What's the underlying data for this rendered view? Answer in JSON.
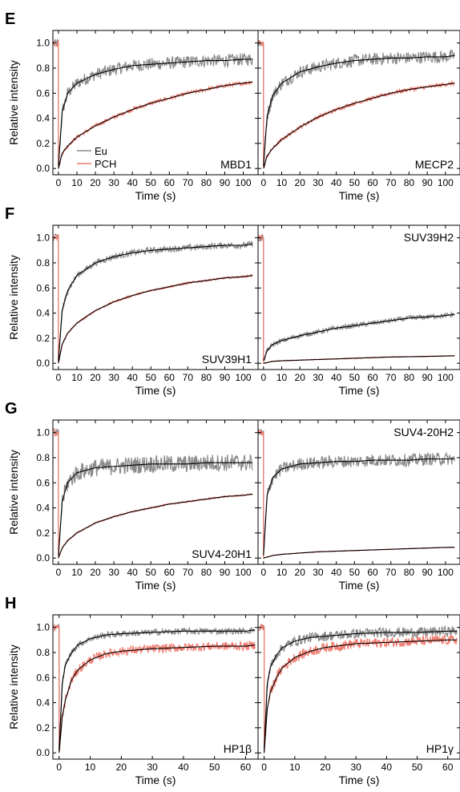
{
  "common": {
    "ylabel": "Relative intensity",
    "xlabel": "Time (s)",
    "series_names": [
      "Eu",
      "PCH"
    ],
    "colors": {
      "eu": "#8a8a8a",
      "pch": "#f07a6e",
      "fit": "#000000"
    }
  },
  "chart_data": [
    {
      "type": "line",
      "row": "E",
      "col": 0,
      "letter": "E",
      "label": "MBD1",
      "legend": true,
      "xlim": [
        -3,
        108
      ],
      "xticks": [
        0,
        10,
        20,
        30,
        40,
        50,
        60,
        70,
        80,
        90,
        100
      ],
      "ylim": [
        -0.05,
        1.1
      ],
      "yticks": [
        0.0,
        0.2,
        0.4,
        0.6,
        0.8,
        1.0
      ],
      "series": [
        {
          "name": "Eu",
          "x": [
            0,
            2,
            5,
            10,
            20,
            30,
            40,
            50,
            60,
            70,
            80,
            90,
            100,
            105
          ],
          "y": [
            0.02,
            0.45,
            0.6,
            0.68,
            0.75,
            0.79,
            0.82,
            0.83,
            0.84,
            0.85,
            0.86,
            0.86,
            0.87,
            0.87
          ],
          "noise": 0.05
        },
        {
          "name": "PCH",
          "x": [
            0,
            2,
            5,
            10,
            20,
            30,
            40,
            50,
            60,
            70,
            80,
            90,
            100,
            105
          ],
          "y": [
            0.0,
            0.12,
            0.18,
            0.25,
            0.34,
            0.41,
            0.47,
            0.52,
            0.56,
            0.6,
            0.63,
            0.66,
            0.68,
            0.69
          ],
          "noise": 0.015
        }
      ]
    },
    {
      "type": "line",
      "row": "E",
      "col": 1,
      "letter": "",
      "label": "MECP2",
      "legend": false,
      "xlim": [
        -3,
        108
      ],
      "xticks": [
        0,
        10,
        20,
        30,
        40,
        50,
        60,
        70,
        80,
        90,
        100
      ],
      "ylim": [
        -0.05,
        1.1
      ],
      "yticks": [
        0.0,
        0.2,
        0.4,
        0.6,
        0.8,
        1.0
      ],
      "series": [
        {
          "name": "Eu",
          "x": [
            0,
            2,
            5,
            10,
            20,
            30,
            40,
            50,
            60,
            70,
            80,
            90,
            100,
            105
          ],
          "y": [
            0.02,
            0.42,
            0.58,
            0.68,
            0.77,
            0.81,
            0.84,
            0.86,
            0.87,
            0.88,
            0.88,
            0.89,
            0.89,
            0.9
          ],
          "noise": 0.05
        },
        {
          "name": "PCH",
          "x": [
            0,
            2,
            5,
            10,
            20,
            30,
            40,
            50,
            60,
            70,
            80,
            90,
            100,
            105
          ],
          "y": [
            0.0,
            0.1,
            0.16,
            0.23,
            0.33,
            0.41,
            0.47,
            0.52,
            0.56,
            0.6,
            0.63,
            0.65,
            0.67,
            0.68
          ],
          "noise": 0.015
        }
      ]
    },
    {
      "type": "line",
      "row": "F",
      "col": 0,
      "letter": "F",
      "label": "SUV39H1",
      "legend": false,
      "xlim": [
        -3,
        108
      ],
      "xticks": [
        0,
        10,
        20,
        30,
        40,
        50,
        60,
        70,
        80,
        90,
        100
      ],
      "ylim": [
        -0.05,
        1.1
      ],
      "yticks": [
        0.0,
        0.2,
        0.4,
        0.6,
        0.8,
        1.0
      ],
      "series": [
        {
          "name": "Eu",
          "x": [
            0,
            2,
            5,
            10,
            20,
            30,
            40,
            50,
            60,
            70,
            80,
            90,
            100,
            105
          ],
          "y": [
            0.02,
            0.42,
            0.58,
            0.7,
            0.8,
            0.85,
            0.88,
            0.9,
            0.91,
            0.92,
            0.93,
            0.94,
            0.94,
            0.95
          ],
          "noise": 0.025
        },
        {
          "name": "PCH",
          "x": [
            0,
            2,
            5,
            10,
            20,
            30,
            40,
            50,
            60,
            70,
            80,
            90,
            100,
            105
          ],
          "y": [
            0.0,
            0.15,
            0.24,
            0.32,
            0.42,
            0.49,
            0.54,
            0.58,
            0.61,
            0.64,
            0.66,
            0.68,
            0.69,
            0.7
          ],
          "noise": 0.008
        }
      ]
    },
    {
      "type": "line",
      "row": "F",
      "col": 1,
      "letter": "",
      "label": "SUV39H2",
      "legend": false,
      "xlim": [
        -3,
        108
      ],
      "xticks": [
        0,
        10,
        20,
        30,
        40,
        50,
        60,
        70,
        80,
        90,
        100
      ],
      "ylim": [
        -0.05,
        1.1
      ],
      "yticks": [
        0.0,
        0.2,
        0.4,
        0.6,
        0.8,
        1.0
      ],
      "series": [
        {
          "name": "Eu",
          "x": [
            0,
            2,
            5,
            10,
            20,
            30,
            40,
            50,
            60,
            70,
            80,
            90,
            100,
            105
          ],
          "y": [
            0.02,
            0.1,
            0.15,
            0.18,
            0.22,
            0.25,
            0.28,
            0.3,
            0.32,
            0.34,
            0.36,
            0.37,
            0.38,
            0.39
          ],
          "noise": 0.02
        },
        {
          "name": "PCH",
          "x": [
            0,
            5,
            10,
            20,
            30,
            40,
            50,
            60,
            70,
            80,
            90,
            100,
            105
          ],
          "y": [
            0.0,
            0.015,
            0.02,
            0.025,
            0.03,
            0.035,
            0.04,
            0.045,
            0.05,
            0.052,
            0.055,
            0.058,
            0.06
          ],
          "noise": 0.003
        }
      ]
    },
    {
      "type": "line",
      "row": "G",
      "col": 0,
      "letter": "G",
      "label": "SUV4-20H1",
      "legend": false,
      "xlim": [
        -3,
        108
      ],
      "xticks": [
        0,
        10,
        20,
        30,
        40,
        50,
        60,
        70,
        80,
        90,
        100
      ],
      "ylim": [
        -0.05,
        1.1
      ],
      "yticks": [
        0.0,
        0.2,
        0.4,
        0.6,
        0.8,
        1.0
      ],
      "series": [
        {
          "name": "Eu",
          "x": [
            0,
            2,
            5,
            10,
            20,
            30,
            40,
            50,
            60,
            70,
            80,
            90,
            100,
            105
          ],
          "y": [
            0.02,
            0.45,
            0.6,
            0.68,
            0.72,
            0.73,
            0.74,
            0.75,
            0.75,
            0.75,
            0.76,
            0.76,
            0.76,
            0.76
          ],
          "noise": 0.07
        },
        {
          "name": "PCH",
          "x": [
            0,
            2,
            5,
            10,
            20,
            30,
            40,
            50,
            60,
            70,
            80,
            90,
            100,
            105
          ],
          "y": [
            0.0,
            0.08,
            0.14,
            0.2,
            0.28,
            0.33,
            0.37,
            0.4,
            0.43,
            0.45,
            0.47,
            0.49,
            0.5,
            0.51
          ],
          "noise": 0.006
        }
      ]
    },
    {
      "type": "line",
      "row": "G",
      "col": 1,
      "letter": "",
      "label": "SUV4-20H2",
      "legend": false,
      "xlim": [
        -3,
        108
      ],
      "xticks": [
        0,
        10,
        20,
        30,
        40,
        50,
        60,
        70,
        80,
        90,
        100
      ],
      "ylim": [
        -0.05,
        1.1
      ],
      "yticks": [
        0.0,
        0.2,
        0.4,
        0.6,
        0.8,
        1.0
      ],
      "series": [
        {
          "name": "Eu",
          "x": [
            0,
            2,
            5,
            10,
            20,
            30,
            40,
            50,
            60,
            70,
            80,
            90,
            100,
            105
          ],
          "y": [
            0.02,
            0.5,
            0.64,
            0.71,
            0.75,
            0.76,
            0.77,
            0.77,
            0.78,
            0.78,
            0.78,
            0.79,
            0.79,
            0.79
          ],
          "noise": 0.05
        },
        {
          "name": "PCH",
          "x": [
            0,
            5,
            10,
            20,
            30,
            40,
            50,
            60,
            70,
            80,
            90,
            100,
            105
          ],
          "y": [
            0.0,
            0.02,
            0.03,
            0.04,
            0.05,
            0.055,
            0.06,
            0.065,
            0.07,
            0.075,
            0.08,
            0.085,
            0.086
          ],
          "noise": 0.002
        }
      ]
    },
    {
      "type": "line",
      "row": "H",
      "col": 0,
      "letter": "H",
      "label": "HP1β",
      "legend": false,
      "xlim": [
        -2,
        64
      ],
      "xticks": [
        0,
        10,
        20,
        30,
        40,
        50,
        60
      ],
      "ylim": [
        -0.05,
        1.1
      ],
      "yticks": [
        0.0,
        0.2,
        0.4,
        0.6,
        0.8,
        1.0
      ],
      "series": [
        {
          "name": "Eu",
          "x": [
            0,
            1,
            2,
            4,
            6,
            10,
            15,
            20,
            30,
            40,
            50,
            60,
            63
          ],
          "y": [
            0.02,
            0.55,
            0.7,
            0.8,
            0.86,
            0.91,
            0.94,
            0.95,
            0.96,
            0.97,
            0.97,
            0.97,
            0.98
          ],
          "noise": 0.025
        },
        {
          "name": "PCH",
          "x": [
            0,
            1,
            2,
            4,
            6,
            10,
            15,
            20,
            30,
            40,
            50,
            60,
            63
          ],
          "y": [
            0.0,
            0.28,
            0.42,
            0.58,
            0.66,
            0.74,
            0.79,
            0.81,
            0.83,
            0.84,
            0.85,
            0.85,
            0.86
          ],
          "noise": 0.035
        }
      ]
    },
    {
      "type": "line",
      "row": "H",
      "col": 1,
      "letter": "",
      "label": "HP1γ",
      "legend": false,
      "xlim": [
        -2,
        64
      ],
      "xticks": [
        0,
        10,
        20,
        30,
        40,
        50,
        60
      ],
      "ylim": [
        -0.05,
        1.1
      ],
      "yticks": [
        0.0,
        0.2,
        0.4,
        0.6,
        0.8,
        1.0
      ],
      "series": [
        {
          "name": "Eu",
          "x": [
            0,
            1,
            2,
            4,
            6,
            10,
            15,
            20,
            30,
            40,
            50,
            60,
            63
          ],
          "y": [
            0.02,
            0.55,
            0.68,
            0.78,
            0.84,
            0.89,
            0.92,
            0.93,
            0.95,
            0.96,
            0.96,
            0.97,
            0.97
          ],
          "noise": 0.04
        },
        {
          "name": "PCH",
          "x": [
            0,
            1,
            2,
            4,
            6,
            10,
            15,
            20,
            30,
            40,
            50,
            60,
            63
          ],
          "y": [
            0.0,
            0.35,
            0.48,
            0.6,
            0.68,
            0.76,
            0.81,
            0.84,
            0.87,
            0.88,
            0.89,
            0.9,
            0.9
          ],
          "noise": 0.04
        }
      ]
    }
  ]
}
